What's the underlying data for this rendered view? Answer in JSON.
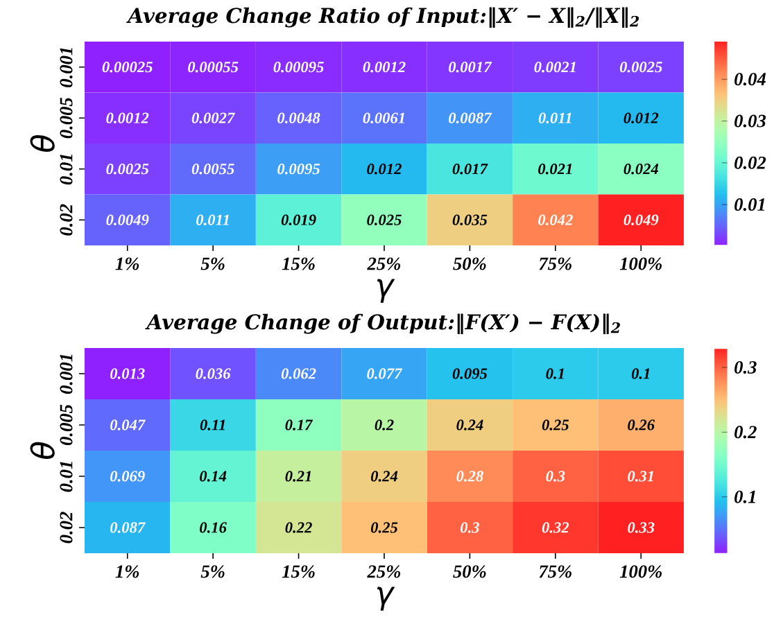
{
  "chart_data": [
    {
      "type": "heatmap",
      "title": "Average Change Ratio of Input:‖X′ − X‖$_{2}$/‖X‖$_{2}$",
      "xlabel": "γ",
      "ylabel": "θ",
      "categories": [
        "1%",
        "5%",
        "15%",
        "25%",
        "50%",
        "75%",
        "100%"
      ],
      "y_categories": [
        "0.001",
        "0.005",
        "0.01",
        "0.02"
      ],
      "cells": [
        [
          0.00025,
          0.00055,
          0.00095,
          0.0012,
          0.0017,
          0.0021,
          0.0025
        ],
        [
          0.0012,
          0.0027,
          0.0048,
          0.0061,
          0.0087,
          0.011,
          0.012
        ],
        [
          0.0025,
          0.0055,
          0.0095,
          0.012,
          0.017,
          0.021,
          0.024
        ],
        [
          0.0049,
          0.011,
          0.019,
          0.025,
          0.035,
          0.042,
          0.049
        ]
      ],
      "clim": [
        0.00025,
        0.049
      ],
      "cticks": [
        0.01,
        0.02,
        0.03,
        0.04
      ],
      "data_labels": true
    },
    {
      "type": "heatmap",
      "title": "Average Change of Output:‖F(X′) − F(X)‖$_{2}$",
      "xlabel": "γ",
      "ylabel": "θ",
      "categories": [
        "1%",
        "5%",
        "15%",
        "25%",
        "50%",
        "75%",
        "100%"
      ],
      "y_categories": [
        "0.001",
        "0.005",
        "0.01",
        "0.02"
      ],
      "cells": [
        [
          0.013,
          0.036,
          0.062,
          0.077,
          0.095,
          0.1,
          0.1
        ],
        [
          0.047,
          0.11,
          0.17,
          0.2,
          0.24,
          0.25,
          0.26
        ],
        [
          0.069,
          0.14,
          0.21,
          0.24,
          0.28,
          0.3,
          0.31
        ],
        [
          0.087,
          0.16,
          0.22,
          0.25,
          0.3,
          0.32,
          0.33
        ]
      ],
      "clim": [
        0.013,
        0.33
      ],
      "cticks": [
        0.1,
        0.2,
        0.3
      ],
      "data_labels": true
    }
  ]
}
